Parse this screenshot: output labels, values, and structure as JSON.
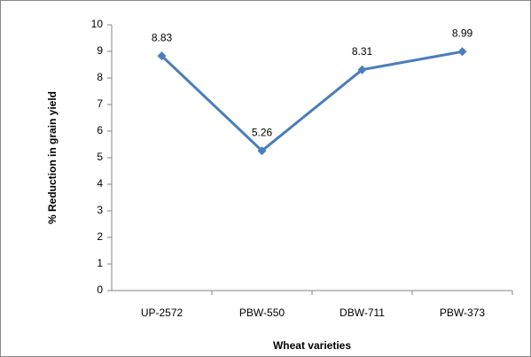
{
  "chart_data": {
    "type": "line",
    "x_label": "Wheat varieties",
    "y_label": "% Reduction in grain yield",
    "categories": [
      "UP-2572",
      "PBW-550",
      "DBW-711",
      "PBW-373"
    ],
    "series": [
      {
        "name": "% Reduction in grain yield",
        "color": "#4a7ebb",
        "values": [
          8.83,
          5.26,
          8.31,
          8.99
        ]
      }
    ],
    "ylim": [
      0,
      10
    ],
    "yticks": [
      0,
      1,
      2,
      3,
      4,
      5,
      6,
      7,
      8,
      9,
      10
    ],
    "grid": false,
    "legend": false,
    "data_labels": true
  }
}
